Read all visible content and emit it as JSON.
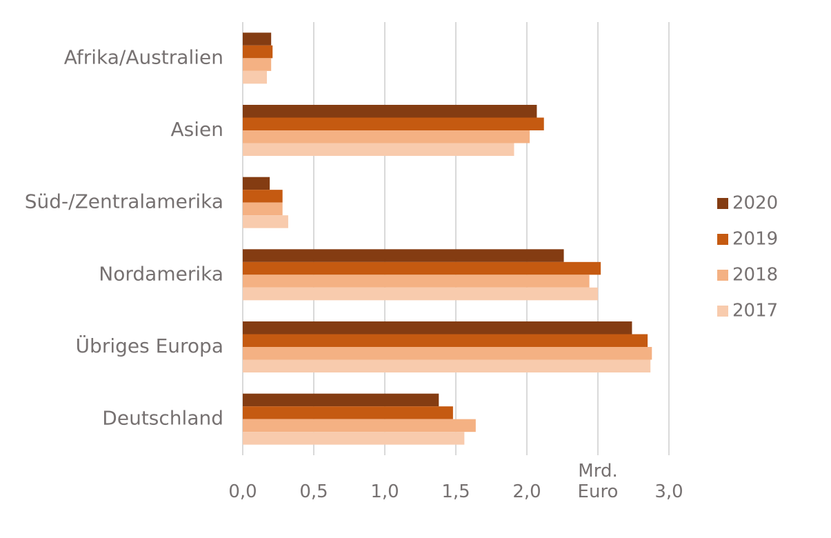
{
  "chart_data": {
    "type": "hbar",
    "categories": [
      "Afrika/Australien",
      "Asien",
      "Süd-/Zentralamerika",
      "Nordamerika",
      "Übriges Europa",
      "Deutschland"
    ],
    "series": [
      {
        "name": "2020",
        "color": "#843c12",
        "values": [
          0.2,
          2.07,
          0.19,
          2.26,
          2.74,
          1.38
        ]
      },
      {
        "name": "2019",
        "color": "#c55a11",
        "values": [
          0.21,
          2.12,
          0.28,
          2.52,
          2.85,
          1.48
        ]
      },
      {
        "name": "2018",
        "color": "#f4b183",
        "values": [
          0.2,
          2.02,
          0.28,
          2.44,
          2.88,
          1.64
        ]
      },
      {
        "name": "2017",
        "color": "#f8cbad",
        "values": [
          0.17,
          1.91,
          0.32,
          2.5,
          2.87,
          1.56
        ]
      }
    ],
    "xlim": [
      0,
      3
    ],
    "xticks": [
      {
        "value": 0,
        "label": "0,0"
      },
      {
        "value": 0.5,
        "label": "0,5"
      },
      {
        "value": 1,
        "label": "1,0"
      },
      {
        "value": 1.5,
        "label": "1,5"
      },
      {
        "value": 2,
        "label": "2,0"
      },
      {
        "value": 2.5,
        "label": "Mrd. Euro"
      },
      {
        "value": 3,
        "label": "3,0"
      }
    ],
    "grid": true,
    "legend": "right"
  }
}
